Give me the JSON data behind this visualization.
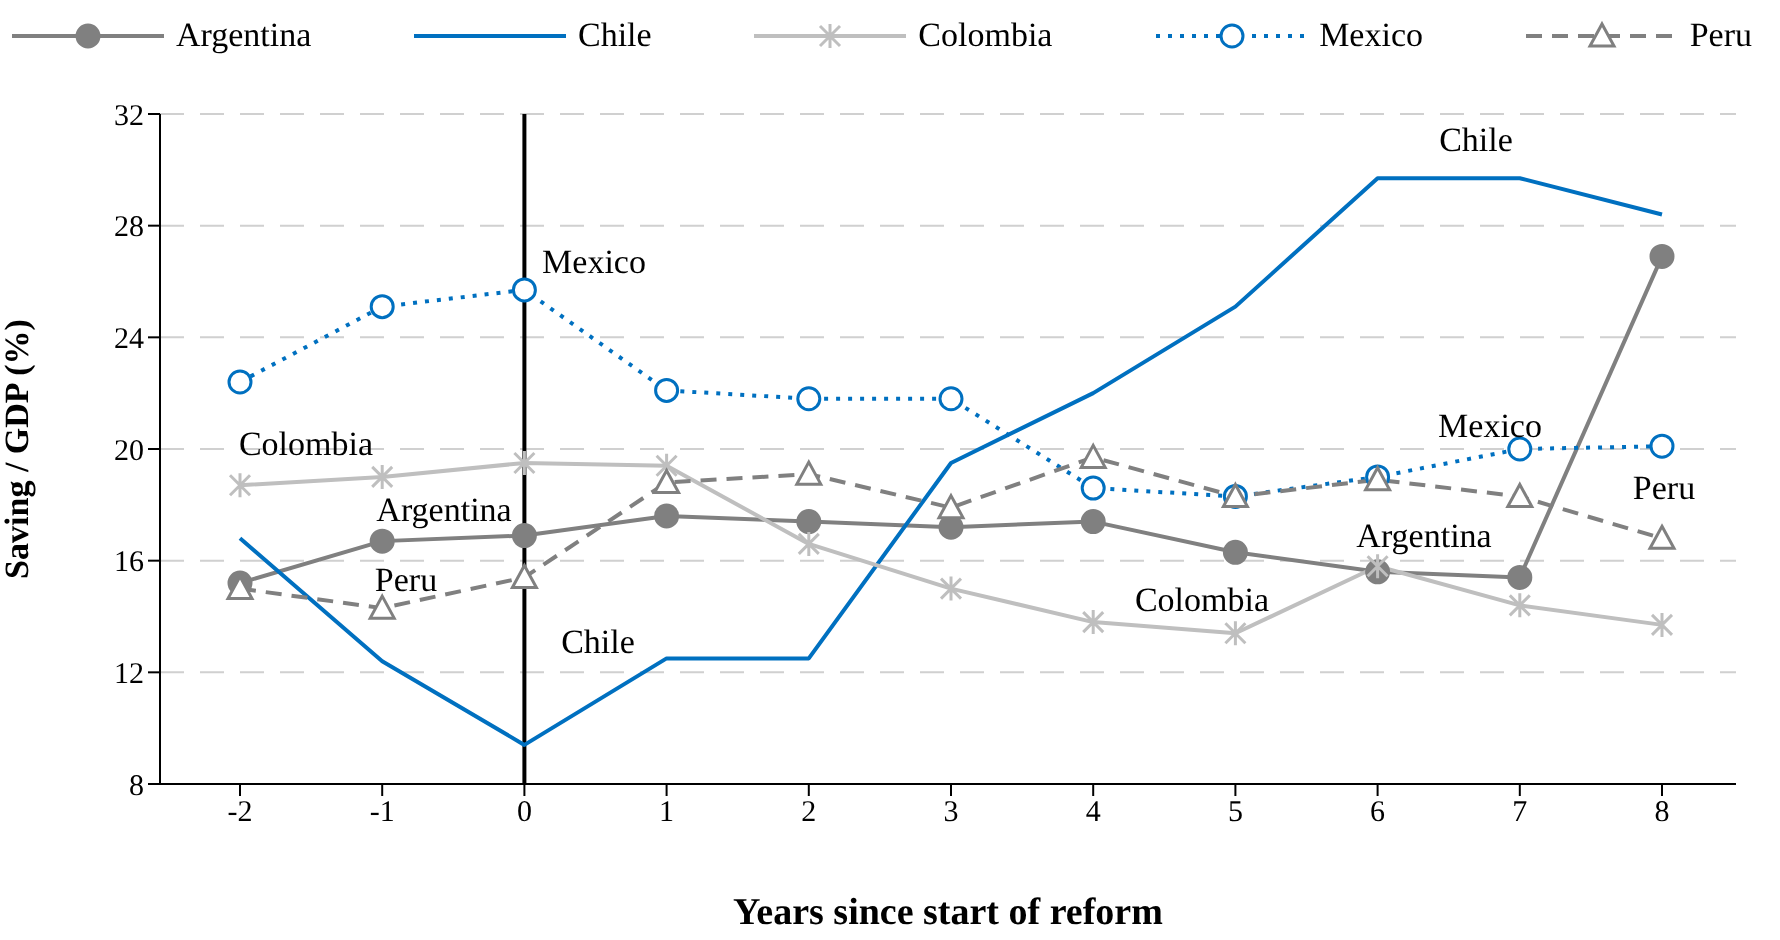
{
  "chart_data": {
    "type": "line",
    "xlabel": "Years since start of reform",
    "ylabel": "Saving / GDP (%)",
    "categories": [
      "-2",
      "-1",
      "0",
      "1",
      "2",
      "3",
      "4",
      "5",
      "6",
      "7",
      "8"
    ],
    "series": [
      {
        "name": "Argentina",
        "color": "#808080",
        "marker": "circle",
        "line_style": "solid",
        "values": [
          15.2,
          16.7,
          16.9,
          17.6,
          17.4,
          17.2,
          17.4,
          16.3,
          15.6,
          15.4,
          26.9
        ]
      },
      {
        "name": "Chile",
        "color": "#0070c0",
        "marker": "none",
        "line_style": "solid",
        "values": [
          16.8,
          12.4,
          9.4,
          12.5,
          12.5,
          19.5,
          22.0,
          25.1,
          29.7,
          29.7,
          28.4
        ]
      },
      {
        "name": "Colombia",
        "color": "#bfbfbf",
        "marker": "cross",
        "line_style": "solid",
        "values": [
          18.7,
          19.0,
          19.5,
          19.4,
          16.6,
          15.0,
          13.8,
          13.4,
          15.8,
          14.4,
          13.7
        ]
      },
      {
        "name": "Mexico",
        "color": "#0070c0",
        "marker": "circle",
        "line_style": "dotted",
        "values": [
          22.4,
          25.1,
          25.7,
          22.1,
          21.8,
          21.8,
          18.6,
          18.3,
          19.0,
          20.0,
          20.1
        ]
      },
      {
        "name": "Peru",
        "color": "#808080",
        "marker": "triangle",
        "line_style": "dashed",
        "values": [
          15.0,
          14.3,
          15.4,
          18.8,
          19.1,
          17.9,
          19.7,
          18.3,
          18.9,
          18.3,
          16.8
        ]
      }
    ],
    "ylim": [
      8,
      32
    ],
    "yticks": [
      8,
      12,
      16,
      20,
      24,
      28,
      32
    ],
    "grid": "y",
    "legend": "top",
    "ref_lines": [
      {
        "axis": "x",
        "value": "0",
        "color": "#000000",
        "line_style": "solid"
      }
    ],
    "annotations": [
      "Mexico",
      "Colombia",
      "Argentina",
      "Peru",
      "Chile",
      "Chile",
      "Mexico",
      "Argentina",
      "Colombia",
      "Peru"
    ]
  }
}
